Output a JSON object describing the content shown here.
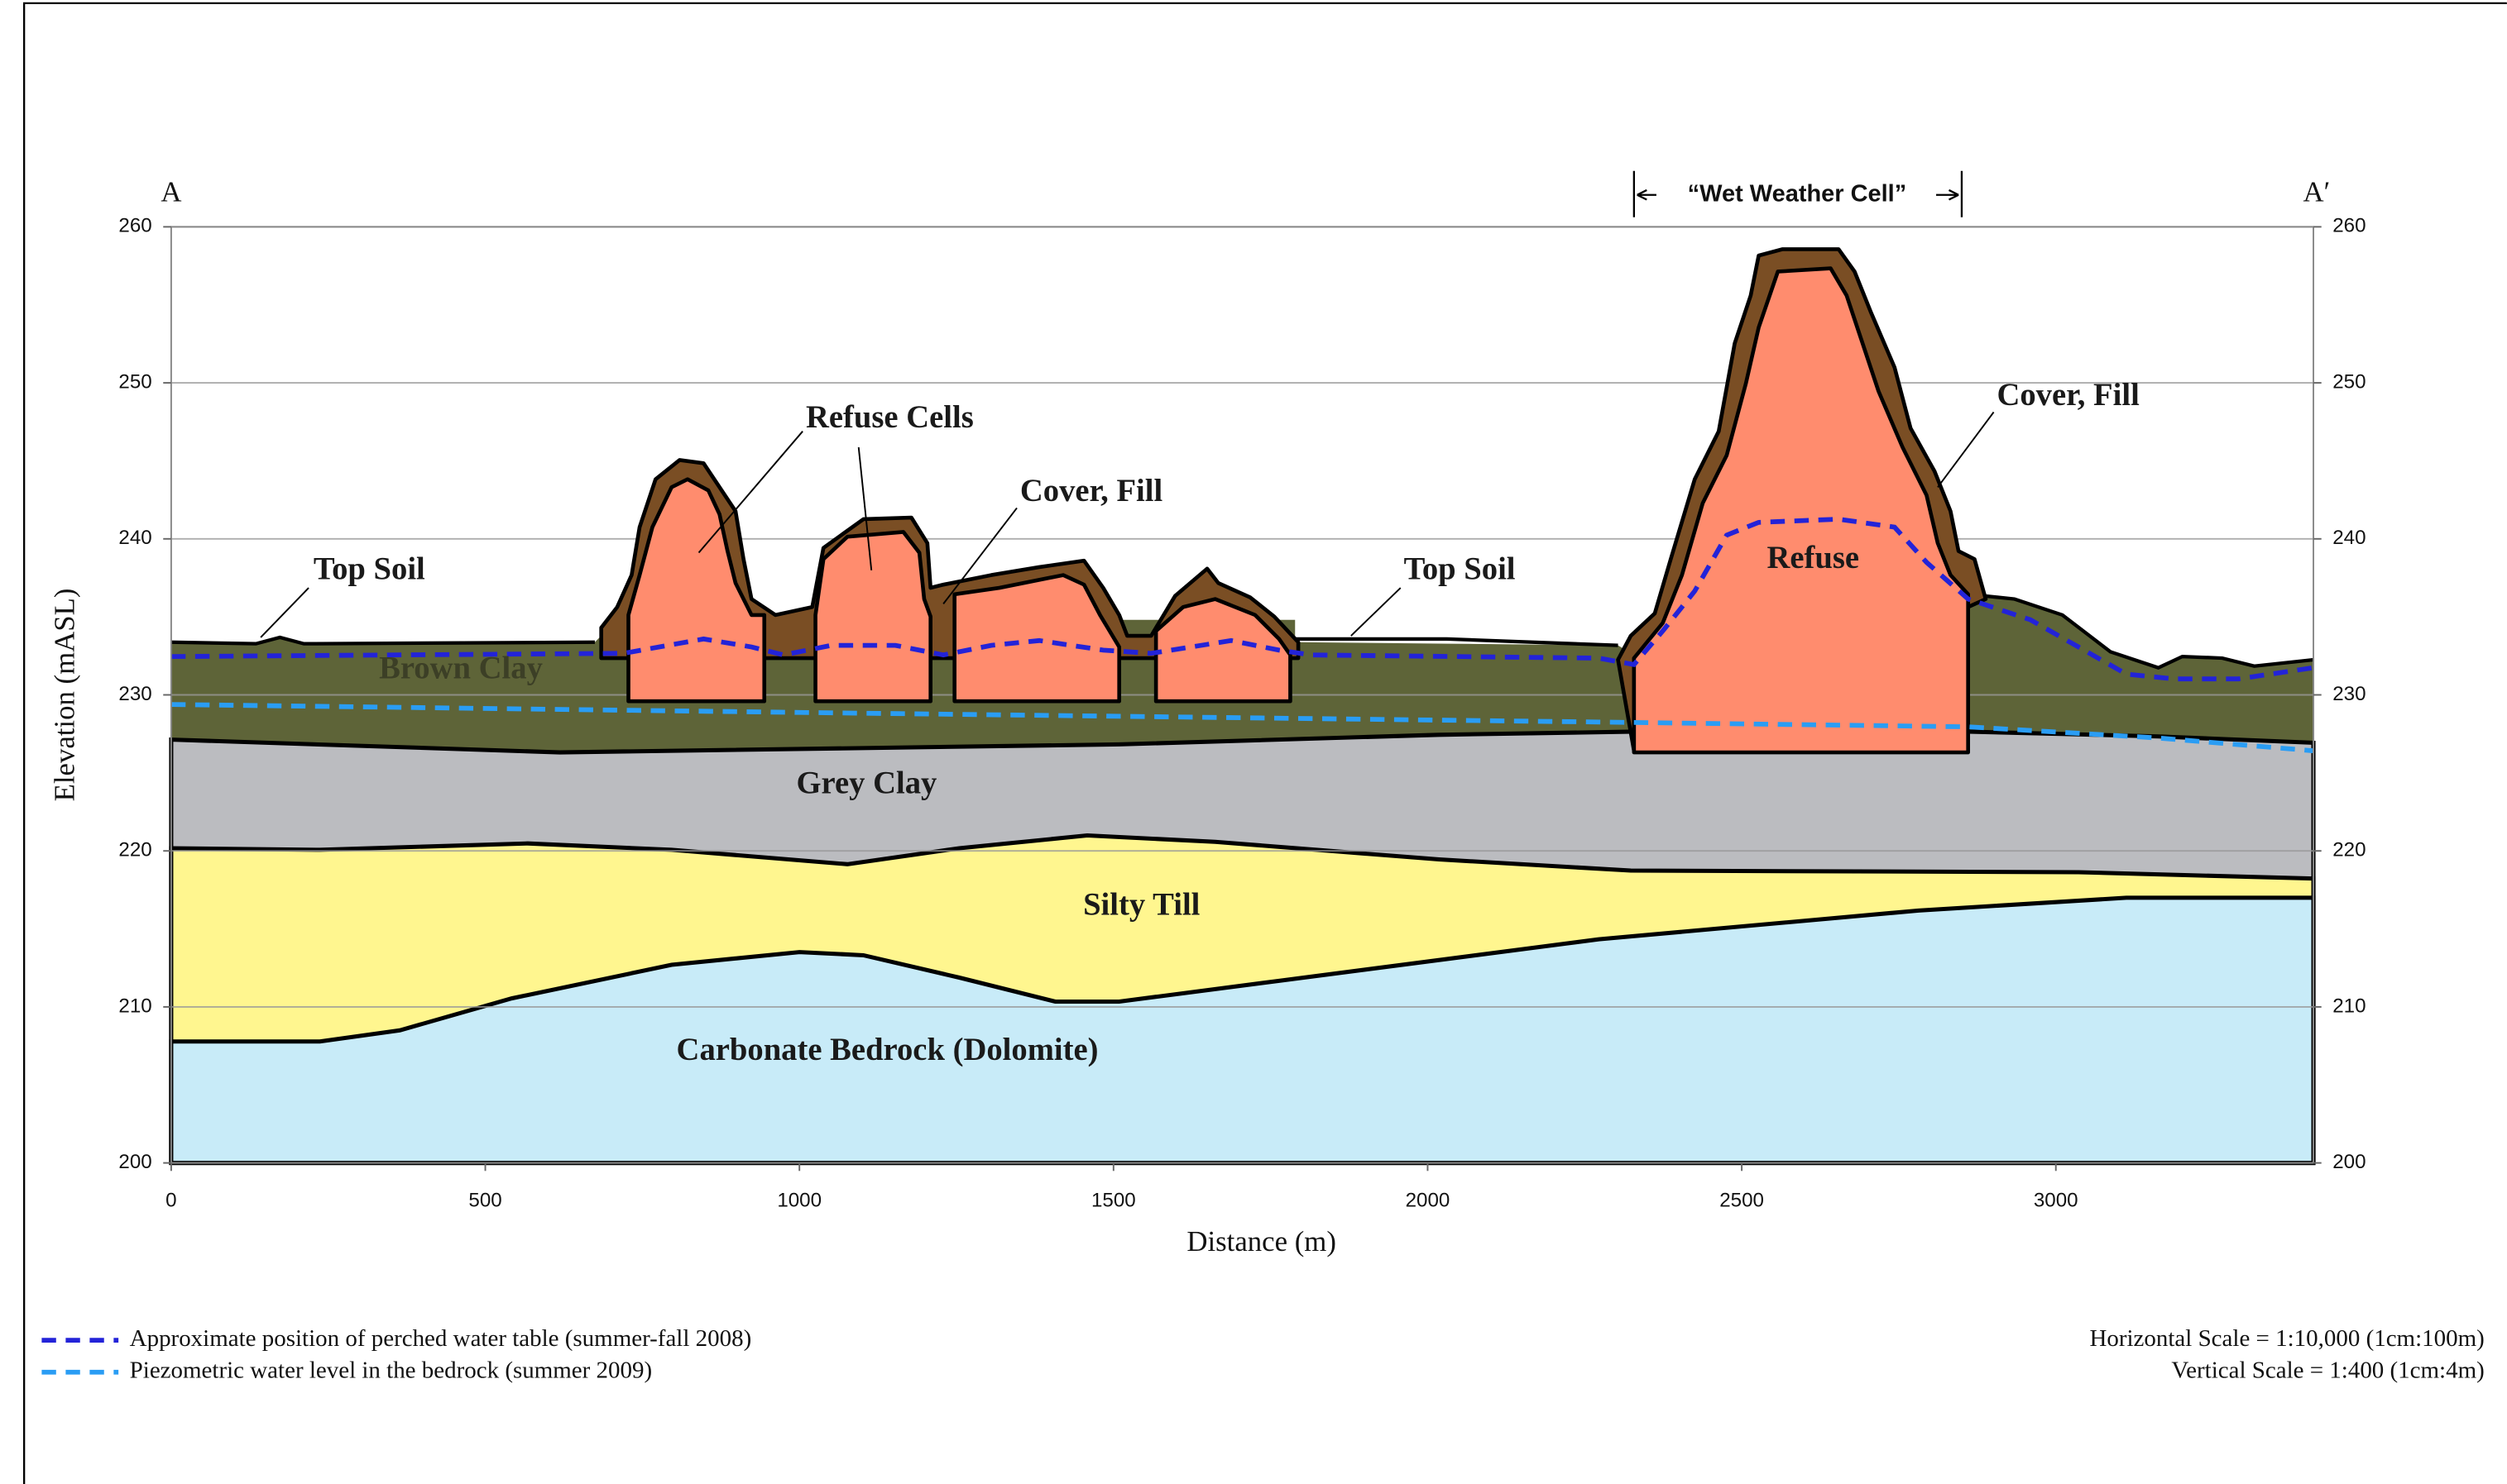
{
  "section": {
    "left_label": "A",
    "right_label": "A′",
    "wet_weather_cell": "“Wet Weather Cell”"
  },
  "axes": {
    "xlabel": "Distance (m)",
    "ylabel": "Elevation (mASL)",
    "xlim": [
      0,
      3410
    ],
    "ylim": [
      200,
      260
    ],
    "xticks": [
      0,
      500,
      1000,
      1500,
      2000,
      2500,
      3000
    ],
    "yticks": [
      200,
      210,
      220,
      230,
      240,
      250,
      260
    ]
  },
  "layer_labels": {
    "top_soil_left": "Top Soil",
    "refuse_cells": "Refuse Cells",
    "cover_fill_left": "Cover, Fill",
    "top_soil_right": "Top Soil",
    "brown_clay": "Brown Clay",
    "grey_clay": "Grey Clay",
    "silty_till": "Silty Till",
    "bedrock": "Carbonate Bedrock (Dolomite)",
    "cover_fill_right": "Cover, Fill",
    "refuse": "Refuse"
  },
  "legend": [
    {
      "name": "Approximate position of perched water table (summer-fall 2008)",
      "color": "#2323d8"
    },
    {
      "name": "Piezometric water level in the bedrock (summer 2009)",
      "color": "#2a9df4"
    }
  ],
  "scale": [
    "Horizontal Scale =  1:10,000 (1cm:100m)",
    "Vertical Scale = 1:400 (1cm:4m)"
  ]
}
